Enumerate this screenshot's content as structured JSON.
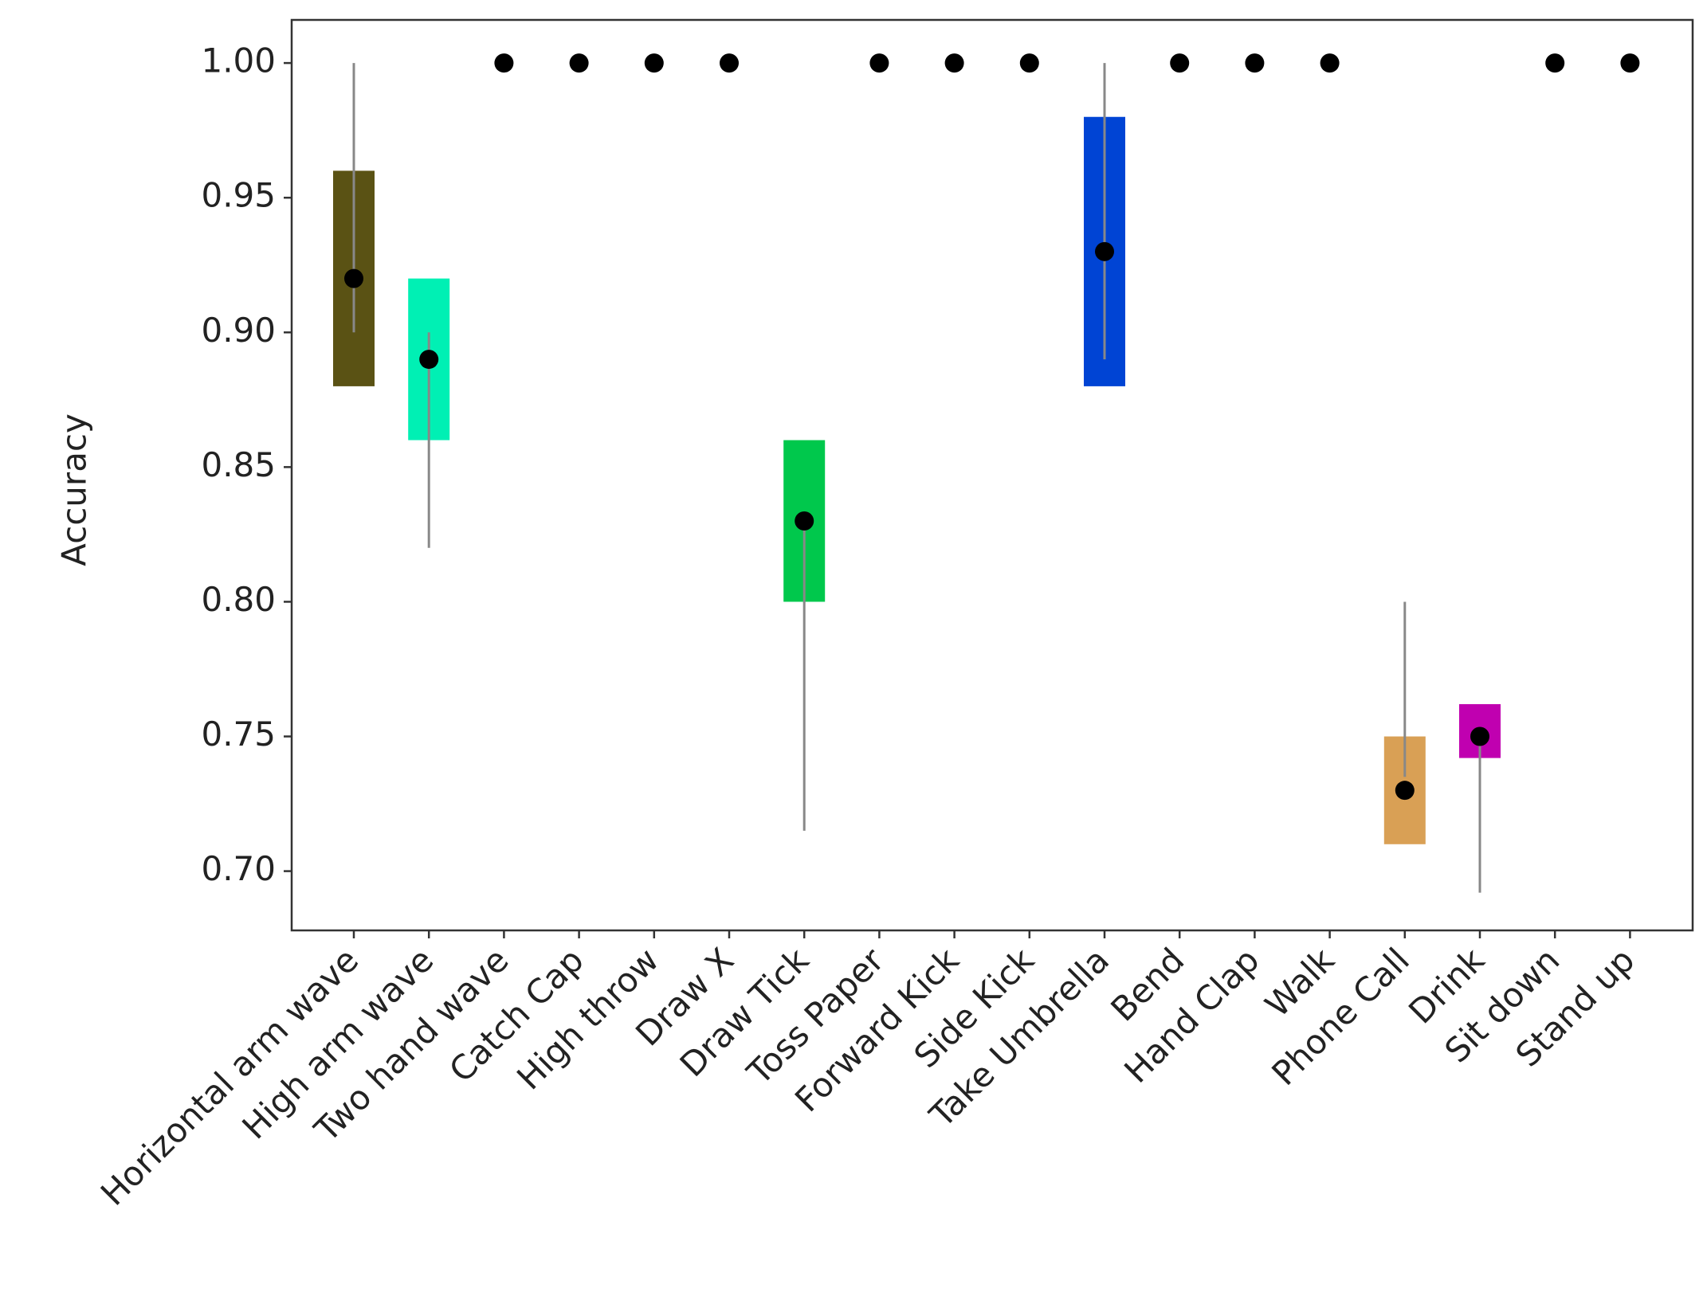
{
  "chart_data": {
    "type": "range",
    "y_label": "Accuracy",
    "categories": [
      "Horizontal arm wave",
      "High arm wave",
      "Two hand wave",
      "Catch Cap",
      "High throw",
      "Draw X",
      "Draw Tick",
      "Toss Paper",
      "Forward Kick",
      "Side Kick",
      "Take Umbrella",
      "Bend",
      "Hand Clap",
      "Walk",
      "Phone Call",
      "Drink",
      "Sit down",
      "Stand up"
    ],
    "values": [
      0.92,
      0.89,
      1.0,
      1.0,
      1.0,
      1.0,
      0.83,
      1.0,
      1.0,
      1.0,
      0.93,
      1.0,
      1.0,
      1.0,
      0.73,
      0.75,
      1.0,
      1.0
    ],
    "box_low": [
      0.88,
      0.86,
      null,
      null,
      null,
      null,
      0.8,
      null,
      null,
      null,
      0.88,
      null,
      null,
      null,
      0.71,
      0.742,
      null,
      null
    ],
    "box_high": [
      0.96,
      0.92,
      null,
      null,
      null,
      null,
      0.86,
      null,
      null,
      null,
      0.98,
      null,
      null,
      null,
      0.75,
      0.762,
      null,
      null
    ],
    "whisker_low": [
      0.9,
      0.82,
      null,
      null,
      null,
      null,
      0.715,
      null,
      null,
      null,
      0.89,
      null,
      null,
      null,
      0.735,
      0.692,
      null,
      null
    ],
    "whisker_high": [
      1.0,
      0.9,
      null,
      null,
      null,
      null,
      0.83,
      null,
      null,
      null,
      1.0,
      null,
      null,
      null,
      0.8,
      0.75,
      null,
      null
    ],
    "colors": [
      "#5a5214",
      "#00f0b4",
      null,
      null,
      null,
      null,
      "#00c84c",
      null,
      null,
      null,
      "#0044d4",
      null,
      null,
      null,
      "#d9a055",
      "#c000b0",
      null,
      null
    ],
    "ylim": [
      0.678,
      1.016
    ],
    "yticks": [
      {
        "value": 0.7,
        "label": "0.70"
      },
      {
        "value": 0.75,
        "label": "0.75"
      },
      {
        "value": 0.8,
        "label": "0.80"
      },
      {
        "value": 0.85,
        "label": "0.85"
      },
      {
        "value": 0.9,
        "label": "0.90"
      },
      {
        "value": 0.95,
        "label": "0.95"
      },
      {
        "value": 1.0,
        "label": "1.00"
      }
    ]
  }
}
